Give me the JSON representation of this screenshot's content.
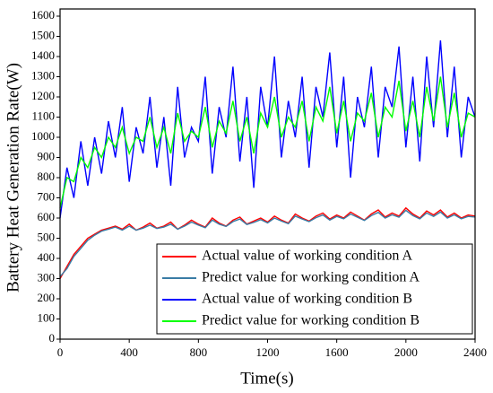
{
  "chart_data": {
    "type": "line",
    "xlabel": "Time(s)",
    "ylabel": "Battery Heat Generation Rate(W)",
    "xlim": [
      0,
      2400
    ],
    "xticks": [
      0,
      400,
      800,
      1200,
      1600,
      2000,
      2400
    ],
    "ylim": [
      0,
      1600
    ],
    "yticks": [
      0,
      100,
      200,
      300,
      400,
      500,
      600,
      700,
      800,
      900,
      1000,
      1100,
      1200,
      1300,
      1400,
      1500,
      1600
    ],
    "legend": "lower right",
    "x": [
      0,
      40,
      80,
      120,
      160,
      200,
      240,
      280,
      320,
      360,
      400,
      440,
      480,
      520,
      560,
      600,
      640,
      680,
      720,
      760,
      800,
      840,
      880,
      920,
      960,
      1000,
      1040,
      1080,
      1120,
      1160,
      1200,
      1240,
      1280,
      1320,
      1360,
      1400,
      1440,
      1480,
      1520,
      1560,
      1600,
      1640,
      1680,
      1720,
      1760,
      1800,
      1840,
      1880,
      1920,
      1960,
      2000,
      2040,
      2080,
      2120,
      2160,
      2200,
      2240,
      2280,
      2320,
      2360,
      2400
    ],
    "series": [
      {
        "name": "Actual value of working condition A",
        "color": "#ff0000",
        "values": [
          300,
          360,
          420,
          460,
          500,
          520,
          540,
          550,
          560,
          545,
          570,
          540,
          555,
          575,
          550,
          560,
          580,
          545,
          565,
          590,
          570,
          555,
          600,
          575,
          560,
          590,
          605,
          570,
          585,
          600,
          580,
          610,
          590,
          575,
          620,
          600,
          585,
          610,
          625,
          595,
          615,
          600,
          630,
          610,
          590,
          620,
          640,
          605,
          625,
          610,
          650,
          620,
          600,
          635,
          615,
          640,
          605,
          625,
          600,
          615,
          610
        ]
      },
      {
        "name": "Predict value for working condition A",
        "color": "#3a7ca5",
        "values": [
          310,
          350,
          410,
          450,
          490,
          515,
          535,
          545,
          555,
          540,
          560,
          540,
          550,
          565,
          548,
          555,
          570,
          545,
          560,
          580,
          565,
          552,
          590,
          570,
          558,
          582,
          595,
          568,
          578,
          592,
          576,
          600,
          585,
          572,
          610,
          595,
          582,
          602,
          615,
          590,
          608,
          596,
          620,
          604,
          588,
          612,
          628,
          600,
          616,
          604,
          638,
          612,
          596,
          625,
          608,
          630,
          600,
          616,
          596,
          608,
          605
        ]
      },
      {
        "name": "Actual value of working condition B",
        "color": "#0000ff",
        "values": [
          600,
          850,
          700,
          980,
          760,
          1000,
          820,
          1080,
          900,
          1150,
          780,
          1050,
          920,
          1200,
          850,
          1100,
          760,
          1250,
          900,
          1050,
          980,
          1300,
          820,
          1150,
          1000,
          1350,
          880,
          1200,
          750,
          1250,
          1050,
          1400,
          900,
          1180,
          1000,
          1300,
          850,
          1250,
          1100,
          1420,
          950,
          1300,
          800,
          1200,
          1050,
          1350,
          900,
          1250,
          1150,
          1450,
          950,
          1300,
          880,
          1400,
          1050,
          1480,
          1000,
          1350,
          900,
          1200,
          1100
        ]
      },
      {
        "name": "Predict value for working condition B",
        "color": "#00ff00",
        "values": [
          650,
          800,
          780,
          900,
          850,
          950,
          900,
          1000,
          950,
          1050,
          920,
          1000,
          980,
          1100,
          950,
          1050,
          920,
          1120,
          980,
          1030,
          1000,
          1150,
          950,
          1080,
          1020,
          1180,
          980,
          1100,
          920,
          1120,
          1050,
          1200,
          1000,
          1100,
          1050,
          1180,
          980,
          1150,
          1080,
          1250,
          1020,
          1180,
          980,
          1120,
          1080,
          1220,
          1000,
          1150,
          1100,
          1280,
          1030,
          1180,
          1000,
          1250,
          1080,
          1300,
          1050,
          1220,
          1000,
          1120,
          1100
        ]
      }
    ]
  }
}
